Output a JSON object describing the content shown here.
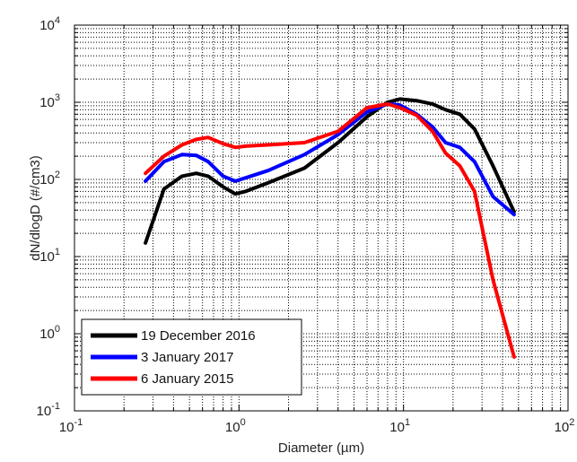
{
  "chart_data": {
    "type": "line",
    "title": "",
    "xlabel": "Diameter (µm)",
    "ylabel": "dN/dlogD (#/cm3)",
    "x_scale": "log",
    "y_scale": "log",
    "xlim": [
      0.1,
      100
    ],
    "ylim": [
      0.1,
      10000
    ],
    "grid": true,
    "legend_position": "bottom-left",
    "x_ticks": [
      {
        "base": "10",
        "exp": "-1"
      },
      {
        "base": "10",
        "exp": "0"
      },
      {
        "base": "10",
        "exp": "1"
      },
      {
        "base": "10",
        "exp": "2"
      }
    ],
    "y_ticks": [
      {
        "base": "10",
        "exp": "-1"
      },
      {
        "base": "10",
        "exp": "0"
      },
      {
        "base": "10",
        "exp": "1"
      },
      {
        "base": "10",
        "exp": "2"
      },
      {
        "base": "10",
        "exp": "3"
      },
      {
        "base": "10",
        "exp": "4"
      }
    ],
    "series": [
      {
        "name": "19 December 2016",
        "color": "#000000",
        "x": [
          0.27,
          0.35,
          0.45,
          0.55,
          0.65,
          0.8,
          0.95,
          1.1,
          1.5,
          2.5,
          4.0,
          6.0,
          8.0,
          9.5,
          12.0,
          15.0,
          18.0,
          22.0,
          27.0,
          35.0,
          47.0
        ],
        "y": [
          15,
          75,
          110,
          120,
          110,
          80,
          65,
          70,
          90,
          140,
          300,
          650,
          1000,
          1100,
          1050,
          950,
          800,
          700,
          450,
          150,
          38
        ]
      },
      {
        "name": "3 January 2017",
        "color": "#0000ff",
        "x": [
          0.27,
          0.35,
          0.45,
          0.55,
          0.65,
          0.8,
          0.95,
          1.1,
          1.5,
          2.5,
          4.0,
          6.0,
          8.0,
          9.5,
          12.0,
          15.0,
          18.0,
          22.0,
          27.0,
          35.0,
          47.0
        ],
        "y": [
          95,
          170,
          210,
          205,
          170,
          110,
          95,
          105,
          130,
          210,
          380,
          750,
          950,
          920,
          700,
          480,
          300,
          260,
          170,
          60,
          35
        ]
      },
      {
        "name": "6 January 2015",
        "color": "#ff0000",
        "x": [
          0.27,
          0.35,
          0.45,
          0.55,
          0.65,
          0.8,
          0.95,
          1.1,
          1.5,
          2.5,
          4.0,
          6.0,
          8.0,
          9.5,
          12.0,
          15.0,
          18.0,
          22.0,
          27.0,
          35.0,
          47.0
        ],
        "y": [
          120,
          200,
          280,
          330,
          350,
          290,
          260,
          270,
          280,
          300,
          420,
          850,
          950,
          850,
          680,
          420,
          220,
          150,
          70,
          5,
          0.5
        ]
      }
    ]
  }
}
